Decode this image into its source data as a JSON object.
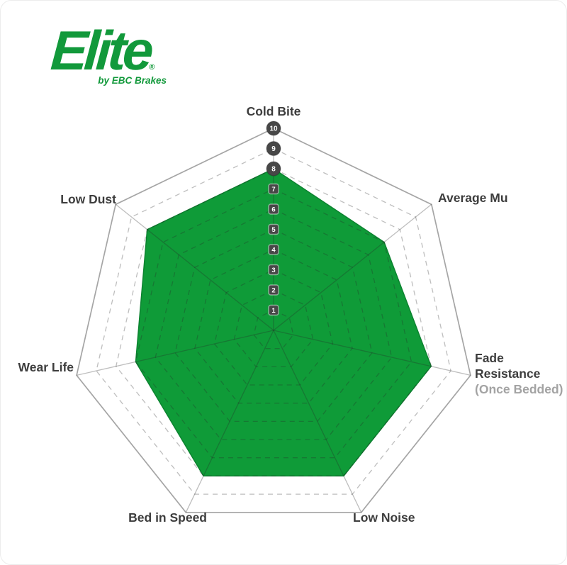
{
  "page": {
    "background": "#FFFFFF",
    "border_color": "#ECECEC"
  },
  "logo": {
    "brand": "Elite",
    "registered": "®",
    "tagline": "by EBC Brakes",
    "color": "#12993B"
  },
  "chart_data": {
    "type": "radar",
    "title": "",
    "categories": [
      "Cold Bite",
      "Average Mu",
      "Fade Resistance (Once Bedded)",
      "Low Noise",
      "Bed in Speed",
      "Wear Life",
      "Low Dust"
    ],
    "axes": [
      {
        "label": "Cold Bite"
      },
      {
        "label": "Average Mu"
      },
      {
        "label": "Fade Resistance",
        "sublabel": "(Once Bedded)"
      },
      {
        "label": "Low Noise"
      },
      {
        "label": "Bed in Speed"
      },
      {
        "label": "Wear Life"
      },
      {
        "label": "Low Dust"
      }
    ],
    "values": [
      8,
      7,
      8,
      8,
      8,
      7,
      8
    ],
    "scale": {
      "min": 0,
      "max": 10,
      "ticks": [
        1,
        2,
        3,
        4,
        5,
        6,
        7,
        8,
        9,
        10
      ],
      "ticks_shown_on_axis": "Cold Bite"
    },
    "grid": {
      "rings": 10,
      "ring_style": "dashed",
      "outer_ring_style": "solid",
      "legend_position": "none"
    },
    "colors": {
      "fill": "#0F9B38",
      "fill_stroke": "#0C8330",
      "grid_line": "rgba(40,40,40,0.30)",
      "outer_ring": "rgba(40,40,40,0.42)",
      "badge_fill": "#474747",
      "badge_text": "#FFFFFF",
      "label": "#3D3D3D",
      "sublabel": "#A3A3A3"
    }
  }
}
